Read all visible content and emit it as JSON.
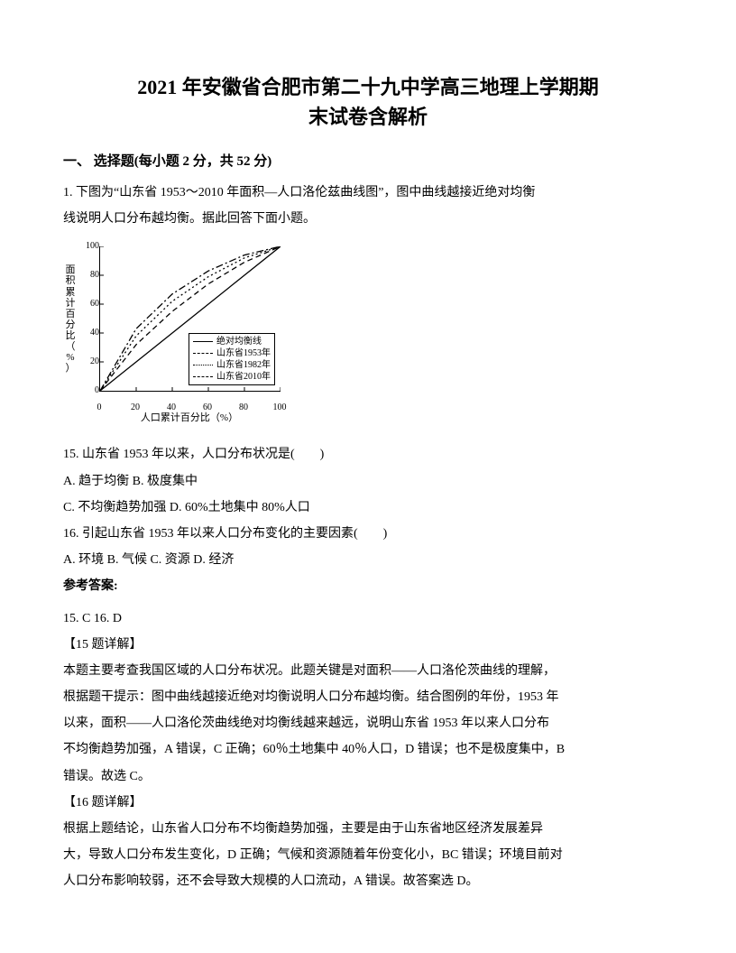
{
  "title_line1": "2021 年安徽省合肥市第二十九中学高三地理上学期期",
  "title_line2": "末试卷含解析",
  "section_head": "一、 选择题(每小题 2 分，共 52 分)",
  "q_intro_1": "1. 下图为“山东省 1953～2010 年面积—人口洛伦兹曲线图”，图中曲线越接近绝对均衡",
  "q_intro_2": "线说明人口分布越均衡。据此回答下面小题。",
  "chart": {
    "type": "line",
    "x_label": "人口累计百分比（%）",
    "y_label_chars": [
      "面",
      "积",
      "累",
      "计",
      "百",
      "分",
      "比",
      "（",
      "%",
      "）"
    ],
    "xlim": [
      0,
      100
    ],
    "ylim": [
      0,
      100
    ],
    "tick_step": 20,
    "ticks": [
      "0",
      "20",
      "40",
      "60",
      "80",
      "100"
    ],
    "background_color": "#ffffff",
    "axis_color": "#000000",
    "series": [
      {
        "name": "绝对均衡线",
        "dash": "solid",
        "color": "#000000",
        "points": [
          [
            0,
            0
          ],
          [
            100,
            100
          ]
        ]
      },
      {
        "name": "山东省1953年",
        "dash": "dashed",
        "color": "#000000",
        "points": [
          [
            0,
            0
          ],
          [
            20,
            32
          ],
          [
            40,
            55
          ],
          [
            60,
            74
          ],
          [
            80,
            89
          ],
          [
            100,
            100
          ]
        ]
      },
      {
        "name": "山东省1982年",
        "dash": "dotted",
        "color": "#000000",
        "points": [
          [
            0,
            0
          ],
          [
            20,
            38
          ],
          [
            40,
            62
          ],
          [
            60,
            79
          ],
          [
            80,
            92
          ],
          [
            100,
            100
          ]
        ]
      },
      {
        "name": "山东省2010年",
        "dash": "dashdot",
        "color": "#000000",
        "points": [
          [
            0,
            0
          ],
          [
            20,
            43
          ],
          [
            40,
            67
          ],
          [
            60,
            83
          ],
          [
            80,
            94
          ],
          [
            100,
            100
          ]
        ]
      }
    ],
    "legend_items": [
      "绝对均衡线",
      "山东省1953年",
      "山东省1982年",
      "山东省2010年"
    ]
  },
  "q15_stem": "15.  山东省 1953 年以来，人口分布状况是(　　)",
  "q15_optA": "A.  趋于均衡    B.  极度集中",
  "q15_optC": "C.  不均衡趋势加强    D.  60%土地集中 80%人口",
  "q16_stem": "16.  引起山东省 1953 年以来人口分布变化的主要因素(　　)",
  "q16_opts": "A.  环境        B.  气候        C.  资源        D.  经济",
  "answers_label": "参考答案:",
  "answers_line": "15. C        16. D",
  "exp15_head": "【15 题详解】",
  "exp15_p1": "本题主要考查我国区域的人口分布状况。此题关键是对面积——人口洛伦茨曲线的理解，",
  "exp15_p2": "根据题干提示：图中曲线越接近绝对均衡说明人口分布越均衡。结合图例的年份，1953 年",
  "exp15_p3": "以来，面积——人口洛伦茨曲线绝对均衡线越来越远，说明山东省 1953 年以来人口分布",
  "exp15_p4": "不均衡趋势加强，A 错误，C 正确；60％土地集中 40％人口，D 错误；也不是极度集中，B",
  "exp15_p5": "错误。故选 C。",
  "exp16_head": "【16 题详解】",
  "exp16_p1": "根据上题结论，山东省人口分布不均衡趋势加强，主要是由于山东省地区经济发展差异",
  "exp16_p2": "大，导致人口分布发生变化，D 正确；气候和资源随着年份变化小，BC 错误；环境目前对",
  "exp16_p3": "人口分布影响较弱，还不会导致大规模的人口流动，A 错误。故答案选 D。"
}
